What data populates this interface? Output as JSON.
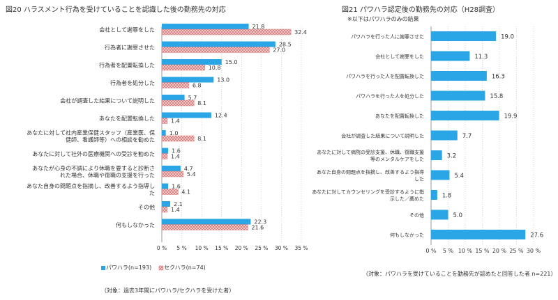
{
  "chart_data": [
    {
      "type": "bar",
      "orientation": "horizontal",
      "title": "図20 ハラスメント行為を受けていることを認識した後の勤務先の対応",
      "categories": [
        [
          "会社として謝罪をした"
        ],
        [
          "行為者に謝罪させた"
        ],
        [
          "行為者を配置転換した"
        ],
        [
          "行為者を処分した"
        ],
        [
          "会社が調査した結果について説明した"
        ],
        [
          "あなたを配置転換した"
        ],
        [
          "あなたに対して社内産業保健スタッフ（産業医、保",
          "健師、看護師等）への相談を勧めた"
        ],
        [
          "あなたに対して社外の医療機関への受診を勧めた"
        ],
        [
          "あなたが心身の不調により休職を要すると診断さ",
          "れた場合、休職や復職の支援を行った"
        ],
        [
          "あなた自身の問題点を指摘し、改善するよう指導し",
          "た"
        ],
        [
          "その他"
        ],
        [
          "何もしなかった"
        ]
      ],
      "series": [
        {
          "name": "パワハラ",
          "legend": "パワハラ(n=193)",
          "color": "#2aa6e6",
          "values": [
            21.8,
            28.5,
            15.0,
            13.0,
            5.7,
            12.4,
            1.0,
            1.6,
            4.7,
            1.6,
            2.1,
            22.3
          ]
        },
        {
          "name": "セクハラ",
          "legend": "セクハラ(n=74)",
          "color": "#e07a7a",
          "values": [
            32.4,
            27.0,
            10.8,
            6.8,
            8.1,
            1.4,
            8.1,
            1.4,
            5.4,
            4.1,
            1.4,
            21.6
          ]
        }
      ],
      "xlim": [
        0,
        35
      ],
      "ticks": [
        0,
        5,
        10,
        15,
        20,
        25,
        30,
        35
      ],
      "tick_suffix": "%",
      "note": "（対象：過去3年間にパワハラ/セクハラを受けた者）"
    },
    {
      "type": "bar",
      "orientation": "horizontal",
      "title": "図21 パワハラ認定後の勤務先の対応（H28調査）",
      "subtitle": "※以下はパワハラのみの結果",
      "categories": [
        [
          "パワハラを行った人に謝罪させた"
        ],
        [
          "会社として謝罪をした"
        ],
        [
          "パワハラを行った人を配置転換した"
        ],
        [
          "パワハラを行った人を処分した"
        ],
        [
          "あなたを配置転換した"
        ],
        [
          "会社が調査した結果について説明した"
        ],
        [
          "あなたに対して病院の受診支援、休職、復職支援",
          "等のメンタルケアをした"
        ],
        [
          "あなた自身の問題点を指摘し、改善するよう指導",
          "した"
        ],
        [
          "あなたに対してカウンセリングを受診するように指",
          "示した／薦めた"
        ],
        [
          "その他"
        ],
        [
          "何もしなかった"
        ]
      ],
      "series": [
        {
          "name": "パワハラ",
          "color": "#2aa6e6",
          "values": [
            19.0,
            11.3,
            16.3,
            15.8,
            19.9,
            7.7,
            3.2,
            5.4,
            1.8,
            5.0,
            27.6
          ]
        }
      ],
      "xlim": [
        0,
        30
      ],
      "ticks": [
        0,
        5,
        10,
        15,
        20,
        25,
        30
      ],
      "tick_suffix": "%",
      "note": "（対象：パワハラを受けていることを勤務先が認めたと回答した者 n=221）"
    }
  ]
}
